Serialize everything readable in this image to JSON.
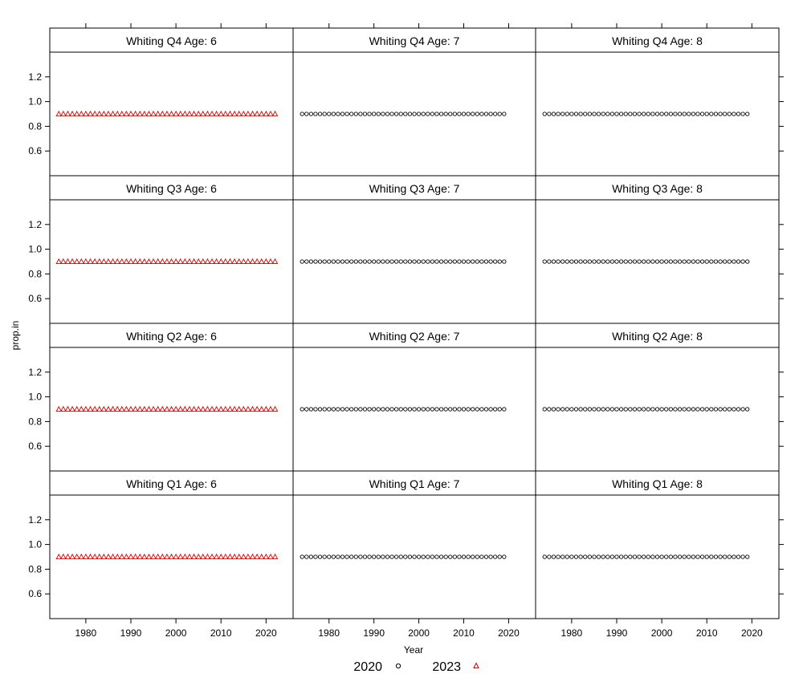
{
  "chart_data": {
    "type": "scatter",
    "layout": "lattice-4x3",
    "xlabel": "Year",
    "ylabel": "prop.in",
    "xlim": [
      1972,
      2026
    ],
    "ylim": [
      0.4,
      1.4
    ],
    "xticks": [
      "1980",
      "1990",
      "2000",
      "2010",
      "2020"
    ],
    "yticks": [
      "0.6",
      "0.8",
      "1.0",
      "1.2"
    ],
    "legend": {
      "placement": "bottom",
      "entries": [
        {
          "name": "2020",
          "color": "#000000",
          "marker": "circle"
        },
        {
          "name": "2023",
          "color": "#cc0000",
          "marker": "triangle"
        }
      ]
    },
    "panels": [
      {
        "title": "Whiting Q4 Age: 6",
        "series": "2023",
        "x_start": 1974,
        "x_end": 2022,
        "y": 0.9
      },
      {
        "title": "Whiting Q4 Age: 7",
        "series": "2020",
        "x_start": 1974,
        "x_end": 2019,
        "y": 0.9
      },
      {
        "title": "Whiting Q4 Age: 8",
        "series": "2020",
        "x_start": 1974,
        "x_end": 2019,
        "y": 0.9
      },
      {
        "title": "Whiting Q3 Age: 6",
        "series": "2023",
        "x_start": 1974,
        "x_end": 2022,
        "y": 0.9
      },
      {
        "title": "Whiting Q3 Age: 7",
        "series": "2020",
        "x_start": 1974,
        "x_end": 2019,
        "y": 0.9
      },
      {
        "title": "Whiting Q3 Age: 8",
        "series": "2020",
        "x_start": 1974,
        "x_end": 2019,
        "y": 0.9
      },
      {
        "title": "Whiting Q2 Age: 6",
        "series": "2023",
        "x_start": 1974,
        "x_end": 2022,
        "y": 0.9
      },
      {
        "title": "Whiting Q2 Age: 7",
        "series": "2020",
        "x_start": 1974,
        "x_end": 2019,
        "y": 0.9
      },
      {
        "title": "Whiting Q2 Age: 8",
        "series": "2020",
        "x_start": 1974,
        "x_end": 2019,
        "y": 0.9
      },
      {
        "title": "Whiting Q1 Age: 6",
        "series": "2023",
        "x_start": 1974,
        "x_end": 2022,
        "y": 0.9
      },
      {
        "title": "Whiting Q1 Age: 7",
        "series": "2020",
        "x_start": 1974,
        "x_end": 2019,
        "y": 0.9
      },
      {
        "title": "Whiting Q1 Age: 8",
        "series": "2020",
        "x_start": 1974,
        "x_end": 2019,
        "y": 0.9
      }
    ]
  }
}
